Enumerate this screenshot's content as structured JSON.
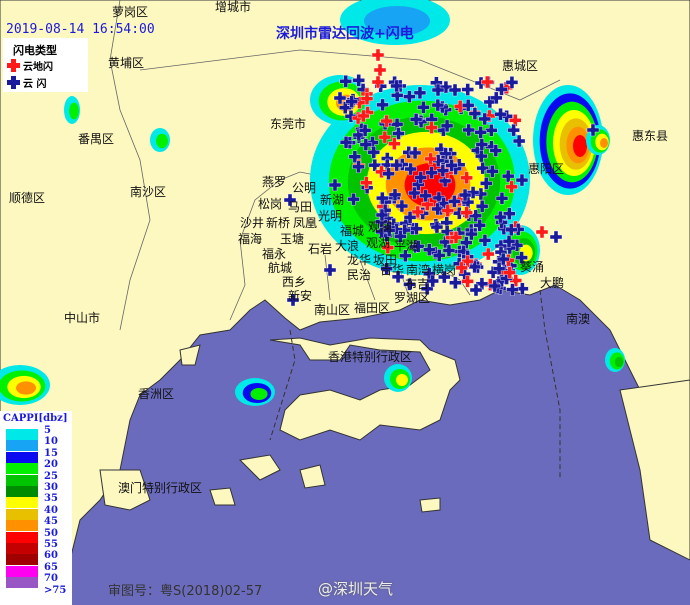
{
  "header": {
    "timestamp": "2019-08-14 16:54:00",
    "title": "深圳市雷达回波+闪电"
  },
  "lightning_legend": {
    "title": "闪电类型",
    "items": [
      {
        "label": "云地闪",
        "color": "#ff1a1a"
      },
      {
        "label": "云  闪",
        "color": "#1a1a9c"
      }
    ]
  },
  "scale": {
    "title": "CAPPI[dbz]",
    "levels": [
      {
        "label": "5",
        "color": "#00e8e8"
      },
      {
        "label": "10",
        "color": "#18a4f4"
      },
      {
        "label": "15",
        "color": "#0a0af0"
      },
      {
        "label": "20",
        "color": "#00f000"
      },
      {
        "label": "25",
        "color": "#00c400"
      },
      {
        "label": "30",
        "color": "#008c00"
      },
      {
        "label": "35",
        "color": "#ffff00"
      },
      {
        "label": "40",
        "color": "#e8c000"
      },
      {
        "label": "45",
        "color": "#ff9000"
      },
      {
        "label": "50",
        "color": "#ff0000"
      },
      {
        "label": "55",
        "color": "#c40000"
      },
      {
        "label": "60",
        "color": "#a00000"
      },
      {
        "label": "65",
        "color": "#ff00f0"
      },
      {
        "label": "70",
        "color": "#9855c4"
      },
      {
        "label": ">75",
        "color": "#ffffff"
      }
    ]
  },
  "places": [
    "增城市",
    "萝岗区",
    "黄埔区",
    "番禺区",
    "东莞市",
    "惠城区",
    "惠东县",
    "惠阳区",
    "顺德区",
    "南沙区",
    "中山市",
    "香洲区",
    "澳门特别行政区",
    "香港特别行政区",
    "南山区",
    "福田区",
    "罗湖区",
    "大鹏",
    "南澳",
    "葵涌",
    "燕罗",
    "公明",
    "松岗",
    "马田",
    "新湖",
    "光明",
    "沙井",
    "新桥",
    "凤凰",
    "福海",
    "玉塘",
    "福城",
    "观澜",
    "观湖",
    "平湖",
    "福永",
    "石岩",
    "大浪",
    "龙华",
    "坂田",
    "航城",
    "民治",
    "吉华",
    "南湾",
    "横岗",
    "西乡",
    "布吉",
    "新安"
  ],
  "footer": {
    "approval": "审图号：粤S(2018)02-57",
    "watermark": "@深圳天气"
  },
  "colors": {
    "land": "#fdf8c0",
    "sea": "#6b6bbd",
    "cg_lightning": "#ff1a1a",
    "ic_lightning": "#1a1a9c"
  }
}
